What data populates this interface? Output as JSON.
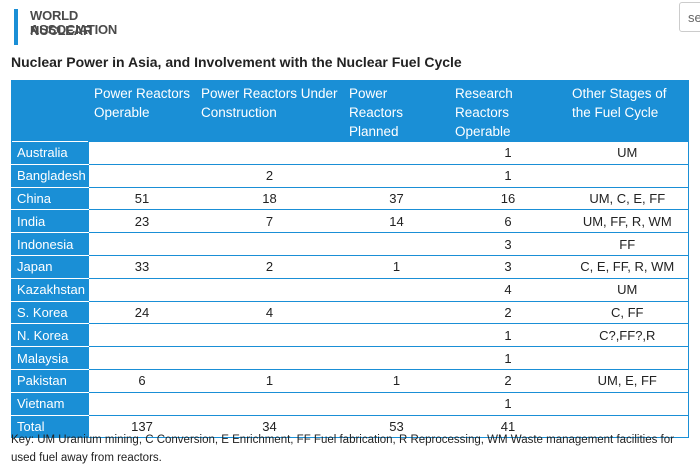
{
  "header": {
    "logo_line1": "WORLD NUCLEAR",
    "logo_line2": "ASSOCIATION",
    "search_placeholder": "se"
  },
  "title": "Nuclear Power in Asia, and Involvement with the Nuclear Fuel Cycle",
  "table": {
    "columns": [
      "Power Reactors Operable",
      "Power Reactors Under Construction",
      "Power Reactors Planned",
      "Research Reactors Operable",
      "Other Stages of the Fuel Cycle"
    ],
    "rows": [
      [
        "Australia",
        null,
        null,
        null,
        1,
        "UM"
      ],
      [
        "Bangladesh",
        null,
        2,
        null,
        1,
        null
      ],
      [
        "China",
        51,
        18,
        37,
        16,
        "UM, C, E, FF"
      ],
      [
        "India",
        23,
        7,
        14,
        6,
        "UM, FF, R, WM"
      ],
      [
        "Indonesia",
        null,
        null,
        null,
        3,
        "FF"
      ],
      [
        "Japan",
        33,
        2,
        1,
        3,
        "C, E, FF, R, WM"
      ],
      [
        "Kazakhstan",
        null,
        null,
        null,
        4,
        "UM"
      ],
      [
        "S. Korea",
        24,
        4,
        null,
        2,
        "C, FF"
      ],
      [
        "N. Korea",
        null,
        null,
        null,
        1,
        "C?,FF?,R"
      ],
      [
        "Malaysia",
        null,
        null,
        null,
        1,
        null
      ],
      [
        "Pakistan",
        6,
        1,
        1,
        2,
        "UM, E, FF"
      ],
      [
        "Vietnam",
        null,
        null,
        null,
        1,
        null
      ],
      [
        "Total",
        137,
        34,
        53,
        41,
        null
      ]
    ]
  },
  "key": "Key: UM Uranium mining, C Conversion, E Enrichment, FF Fuel fabrication, R Reprocessing, WM Waste management facilities for used fuel away from reactors."
}
